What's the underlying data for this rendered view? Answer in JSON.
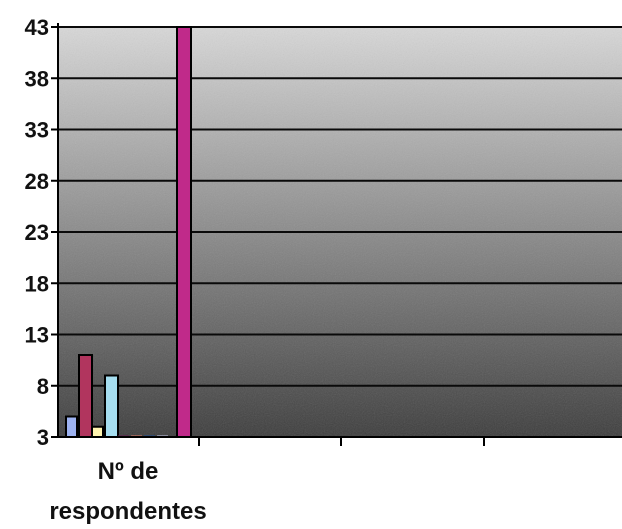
{
  "chart_data": {
    "type": "bar",
    "categories": [
      "Nº de respondentes"
    ],
    "category_label_lines": [
      "Nº de",
      "respondentes"
    ],
    "series": [
      {
        "values": [
          5
        ],
        "color": "#9db2f0"
      },
      {
        "values": [
          11
        ],
        "color": "#b1355e"
      },
      {
        "values": [
          4
        ],
        "color": "#fff4b0"
      },
      {
        "values": [
          9
        ],
        "color": "#a6def0"
      },
      {
        "values": [
          3
        ],
        "color": "#6a1c55"
      },
      {
        "values": [
          3
        ],
        "color": "#e8806c"
      },
      {
        "values": [
          3
        ],
        "color": "#1b4f9c"
      },
      {
        "values": [
          3
        ],
        "color": "#c9cdf0"
      },
      {
        "values": [
          43
        ],
        "color": "#c02a8a"
      }
    ],
    "ylim": [
      3,
      43
    ],
    "yticks": [
      3,
      8,
      13,
      18,
      23,
      28,
      33,
      38,
      43
    ],
    "grid": true,
    "legend": "none",
    "title": "",
    "xlabel": "",
    "ylabel": ""
  },
  "colors": {
    "plot_top": "#d8d8d8",
    "plot_bottom": "#3c3c3c",
    "gridline": "#0a0a0a",
    "axis": "#000000"
  }
}
